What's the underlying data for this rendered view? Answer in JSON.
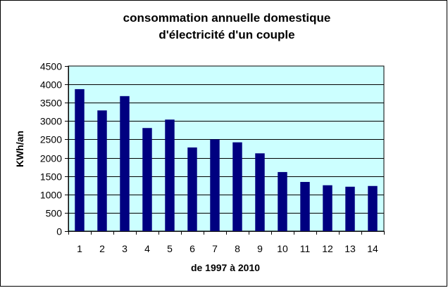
{
  "chart_data": {
    "type": "bar",
    "title_line1": "consommation annuelle domestique",
    "title_line2": "d'électricité d'un couple",
    "xlabel": "de 1997 à 2010",
    "ylabel": "KWh/an",
    "categories": [
      "1",
      "2",
      "3",
      "4",
      "5",
      "6",
      "7",
      "8",
      "9",
      "10",
      "11",
      "12",
      "13",
      "14"
    ],
    "values": [
      3870,
      3290,
      3680,
      2810,
      3040,
      2280,
      2500,
      2420,
      2120,
      1610,
      1340,
      1250,
      1210,
      1230
    ],
    "ylim": [
      0,
      4500
    ],
    "yticks": [
      0,
      500,
      1000,
      1500,
      2000,
      2500,
      3000,
      3500,
      4000,
      4500
    ],
    "grid": true,
    "legend": "none",
    "colors": {
      "bar": "#000080",
      "plot_background": "#ccffff",
      "gridline": "#000000",
      "chart_border": "#000000"
    }
  }
}
